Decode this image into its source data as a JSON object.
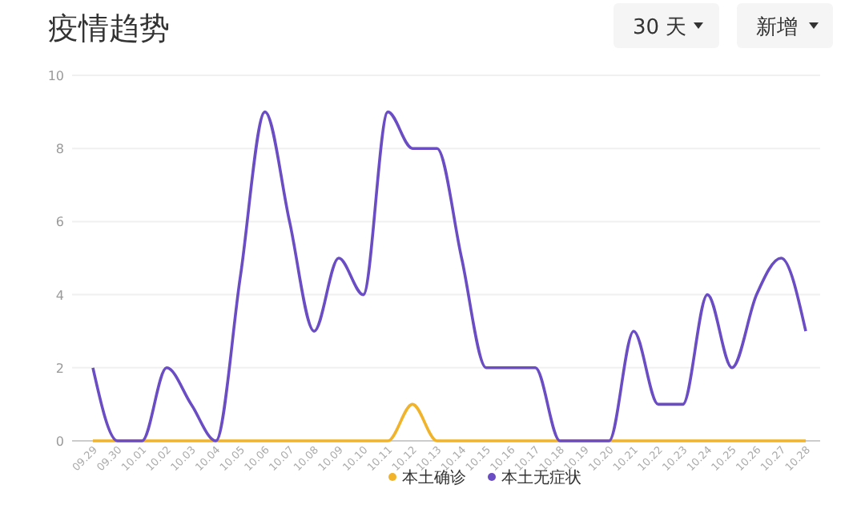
{
  "chart_data": {
    "type": "line",
    "title": "疫情趋势",
    "annotations": [
      "30 天",
      "新增"
    ],
    "categories": [
      "09.29",
      "09.30",
      "10.01",
      "10.02",
      "10.03",
      "10.04",
      "10.05",
      "10.06",
      "10.07",
      "10.08",
      "10.09",
      "10.10",
      "10.11",
      "10.12",
      "10.13",
      "10.14",
      "10.15",
      "10.16",
      "10.17",
      "10.18",
      "10.19",
      "10.20",
      "10.21",
      "10.22",
      "10.23",
      "10.24",
      "10.25",
      "10.26",
      "10.27",
      "10.28"
    ],
    "series": [
      {
        "name": "本土确诊",
        "color": "#f0b32a",
        "values": [
          0,
          0,
          0,
          0,
          0,
          0,
          0,
          0,
          0,
          0,
          0,
          0,
          0,
          1,
          0,
          0,
          0,
          0,
          0,
          0,
          0,
          0,
          0,
          0,
          0,
          0,
          0,
          0,
          0,
          0
        ]
      },
      {
        "name": "本土无症状",
        "color": "#6a4cc4",
        "values": [
          2,
          0,
          0,
          2,
          1,
          0,
          4.5,
          9,
          6,
          3,
          5,
          4,
          9,
          8,
          8,
          5,
          2,
          2,
          2,
          0,
          0,
          0,
          3,
          1,
          1,
          4,
          2,
          4,
          5,
          3
        ]
      }
    ],
    "ylim": [
      0,
      10
    ],
    "yticks": [
      0,
      2,
      4,
      6,
      8,
      10
    ],
    "grid": "y",
    "legend": "bottom",
    "marker": "none",
    "line_style": "solid"
  }
}
